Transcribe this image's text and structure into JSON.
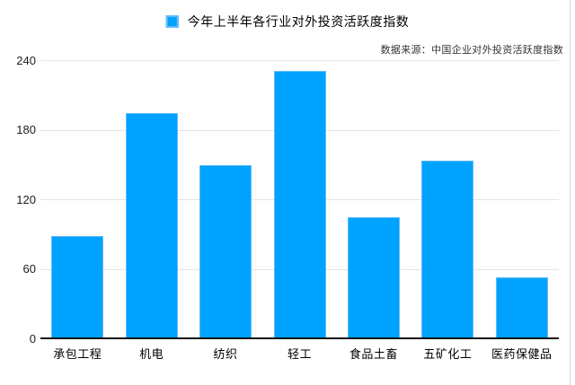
{
  "legend": {
    "swatch_color": "#00a2ff"
  },
  "source_note": "数据来源：中国企业对外投资活跃度指数",
  "colors": {
    "bar_fill": "#00a2ff",
    "bar_border": "#63bcfa",
    "gridline": "#e4e4e4",
    "axis_line": "#111111",
    "text": "#000000",
    "source_text": "#323232"
  },
  "chart_data": {
    "type": "bar",
    "title": "今年上半年各行业对外投资活跃度指数",
    "categories": [
      "承包工程",
      "机电",
      "纺织",
      "轻工",
      "食品土畜",
      "五矿化工",
      "医药保健品"
    ],
    "values": [
      89,
      195,
      150,
      231,
      105,
      154,
      53
    ],
    "xlabel": "",
    "ylabel": "",
    "ylim": [
      0,
      240
    ],
    "yticks": [
      0,
      60,
      120,
      180,
      240
    ],
    "grid": true,
    "legend_position": "top-center",
    "source": "数据来源：中国企业对外投资活跃度指数"
  }
}
